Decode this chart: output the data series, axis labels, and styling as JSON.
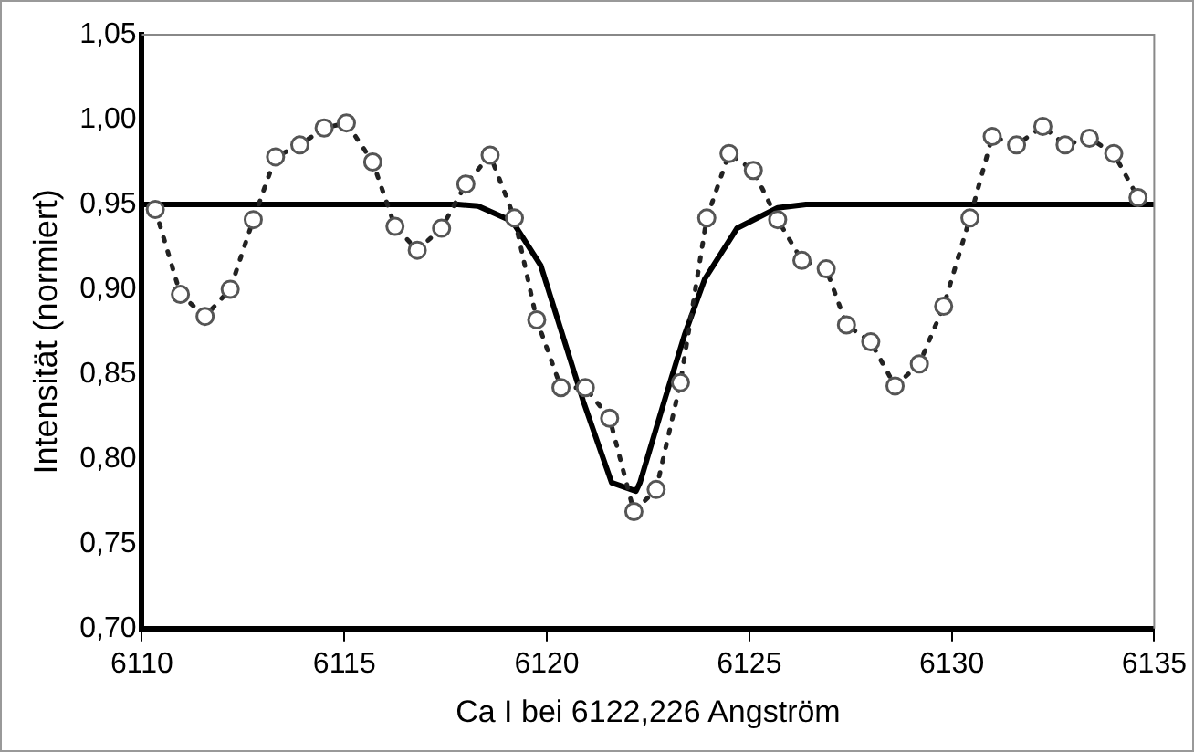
{
  "chart_data": {
    "type": "line",
    "xlabel": "Ca I bei 6122,226 Angström",
    "ylabel": "Intensität (normiert)",
    "xlim": [
      6110,
      6135
    ],
    "xticks": [
      6110,
      6115,
      6120,
      6125,
      6130,
      6135
    ],
    "ylim": [
      0.7,
      1.05
    ],
    "yticks": [
      {
        "value": 0.7,
        "label": "0,70"
      },
      {
        "value": 0.75,
        "label": "0,75"
      },
      {
        "value": 0.8,
        "label": "0,80"
      },
      {
        "value": 0.85,
        "label": "0,85"
      },
      {
        "value": 0.9,
        "label": "0,90"
      },
      {
        "value": 0.95,
        "label": "0,95"
      },
      {
        "value": 1.0,
        "label": "1,00"
      },
      {
        "value": 1.05,
        "label": "1,05"
      }
    ],
    "grid": false,
    "legend": false,
    "series": [
      {
        "color": "#222222",
        "marker": "circle",
        "line_style": "dotted",
        "x": [
          6110.33,
          6110.95,
          6111.56,
          6112.18,
          6112.75,
          6113.3,
          6113.9,
          6114.5,
          6115.05,
          6115.7,
          6116.25,
          6116.8,
          6117.4,
          6118.0,
          6118.6,
          6119.2,
          6119.75,
          6120.35,
          6120.95,
          6121.55,
          6122.15,
          6122.7,
          6123.3,
          6123.95,
          6124.5,
          6125.1,
          6125.7,
          6126.3,
          6126.9,
          6127.4,
          6128.0,
          6128.6,
          6129.2,
          6129.8,
          6130.45,
          6131.0,
          6131.6,
          6132.25,
          6132.8,
          6133.4,
          6134.0,
          6134.6
        ],
        "values": [
          0.947,
          0.897,
          0.884,
          0.9,
          0.941,
          0.978,
          0.985,
          0.995,
          0.998,
          0.975,
          0.937,
          0.923,
          0.936,
          0.962,
          0.979,
          0.942,
          0.882,
          0.842,
          0.842,
          0.824,
          0.769,
          0.782,
          0.845,
          0.942,
          0.98,
          0.97,
          0.941,
          0.917,
          0.912,
          0.879,
          0.869,
          0.843,
          0.856,
          0.89,
          0.942,
          0.99,
          0.985,
          0.996,
          0.985,
          0.989,
          0.98,
          0.954
        ]
      },
      {
        "color": "#000000",
        "marker": "none",
        "line_style": "solid",
        "x": [
          6110,
          6117.8,
          6118.3,
          6119.15,
          6119.85,
          6120.9,
          6121.6,
          6122.2,
          6122.3,
          6122.9,
          6123.4,
          6123.9,
          6124.7,
          6125.7,
          6126.4,
          6135
        ],
        "values": [
          0.95,
          0.95,
          0.949,
          0.94,
          0.914,
          0.834,
          0.786,
          0.781,
          0.786,
          0.834,
          0.873,
          0.906,
          0.936,
          0.948,
          0.95,
          0.95
        ]
      }
    ]
  }
}
